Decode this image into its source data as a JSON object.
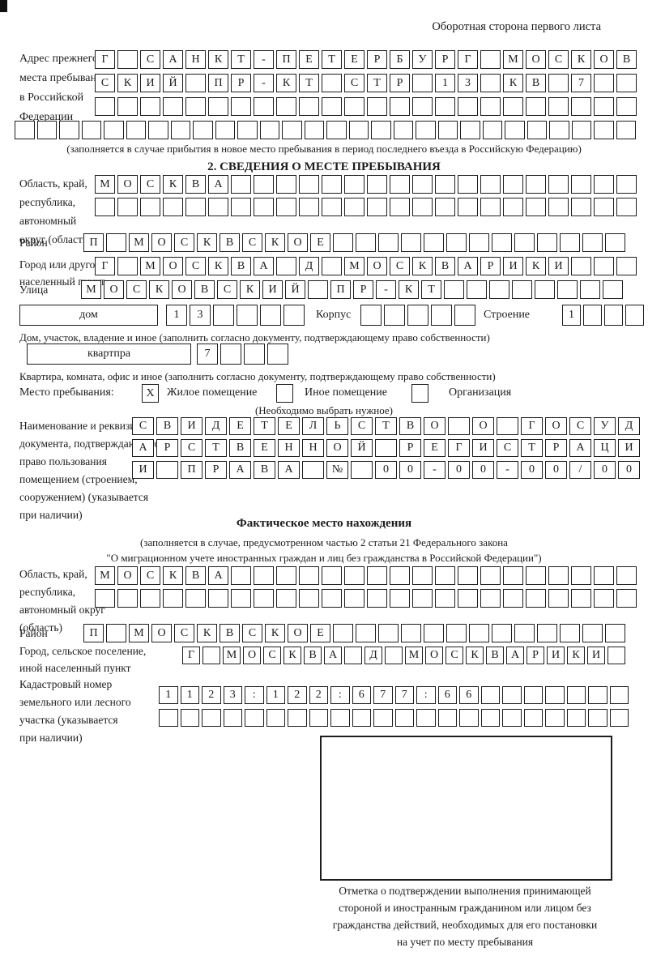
{
  "header": {
    "title": "Оборотная сторона первого листа"
  },
  "prev_address": {
    "label_lines": [
      "Адрес прежнего",
      "места пребывания",
      "в Российской",
      "Федерации"
    ],
    "rows": [
      {
        "cells": 24,
        "text": "Г САНКТ-ПЕТЕРБУРГ МОСКОВ"
      },
      {
        "cells": 24,
        "text": "СКИЙ ПР-КТ СТР 13 КВ 7"
      },
      {
        "cells": 24,
        "text": ""
      },
      {
        "cells": 28,
        "text": ""
      }
    ],
    "note": "(заполняется в случае прибытия в новое место пребывания в период последнего въезда в Российскую Федерацию)"
  },
  "section2": {
    "title": "2. СВЕДЕНИЯ О МЕСТЕ ПРЕБЫВАНИЯ",
    "oblast": {
      "label_lines": [
        "Область, край,",
        "республика,",
        "автономный",
        "округ (область)"
      ],
      "rows": [
        {
          "cells": 24,
          "text": "МОСКВА"
        },
        {
          "cells": 24,
          "text": ""
        }
      ]
    },
    "raion": {
      "label": "Район",
      "row": {
        "cells": 24,
        "text": "П МОСКВСКОЕ"
      }
    },
    "city": {
      "label_lines": [
        "Город или другой",
        "населенный пункт"
      ],
      "row": {
        "cells": 24,
        "text": "Г МОСКВА Д МОСКВАРИКИ"
      }
    },
    "street": {
      "label": "Улица",
      "row": {
        "cells": 24,
        "text": "МОСКОВСКИЙ ПР-КТ"
      }
    },
    "house": {
      "dom_label": "дом",
      "dom_cells": {
        "cells": 6,
        "text": "13"
      },
      "korpus_label": "Корпус",
      "korpus_cells": {
        "cells": 5,
        "text": ""
      },
      "stroenie_label": "Строение",
      "stroenie_cells": {
        "cells": 4,
        "text": "1"
      },
      "note": "Дом, участок, владение и иное (заполнить согласно документу, подтверждающему право собственности)"
    },
    "apartment": {
      "label": "квартпра",
      "cells": {
        "cells": 4,
        "text": "7"
      },
      "note": "Квартира, комната, офис и иное (заполнить согласно документу, подтверждающему право собственности)"
    },
    "stay_type": {
      "label": "Место пребывания:",
      "options": [
        {
          "label": "Жилое помещение",
          "mark": "X"
        },
        {
          "label": "Иное помещение",
          "mark": ""
        },
        {
          "label": "Организация",
          "mark": ""
        }
      ],
      "note": "(Необходимо выбрать нужное)"
    },
    "document": {
      "label_lines": [
        "Наименование и реквизиты",
        "документа, подтверждающего",
        "право пользования",
        "помещением (строением,",
        "сооружением) (указывается",
        "при наличии)"
      ],
      "rows": [
        {
          "cells": 21,
          "text": "СВИДЕТЕЛЬСТВО О ГОСУД"
        },
        {
          "cells": 21,
          "text": "АРСТВЕННОЙ РЕГИСТРАЦИ"
        },
        {
          "cells": 21,
          "text": "И ПРАВА № 00-00-00/000"
        }
      ]
    }
  },
  "actual_location": {
    "title": "Фактическое место нахождения",
    "note_lines": [
      "(заполняется в случае, предусмотренном частью 2 статьи 21 Федерального закона",
      "\"О миграционном учете иностранных граждан и лиц без гражданства в Российской Федерации\")"
    ],
    "oblast": {
      "label_lines": [
        "Область, край,",
        "республика,",
        "автономный округ",
        "(область)"
      ],
      "rows": [
        {
          "cells": 24,
          "text": "МОСКВА"
        },
        {
          "cells": 24,
          "text": ""
        }
      ]
    },
    "raion": {
      "label": "Район",
      "row": {
        "cells": 24,
        "text": "П МОСКВСКОЕ"
      }
    },
    "city": {
      "label_lines": [
        "Город, сельское поселение,",
        "иной населенный пункт"
      ],
      "row": {
        "cells": 22,
        "text": "Г МОСКВА Д МОСКВАРИКИ"
      }
    },
    "cadastre": {
      "label_lines": [
        "Кадастровый номер",
        "земельного или лесного",
        "участка (указывается",
        "при наличии)"
      ],
      "rows": [
        {
          "cells": 22,
          "text": "1123:122:677:66"
        },
        {
          "cells": 22,
          "text": ""
        }
      ]
    },
    "stamp_caption_lines": [
      "Отметка о подтверждении выполнения принимающей",
      "стороной и иностранным гражданином или лицом без",
      "гражданства действий, необходимых для его постановки",
      "на учет по месту пребывания"
    ]
  }
}
